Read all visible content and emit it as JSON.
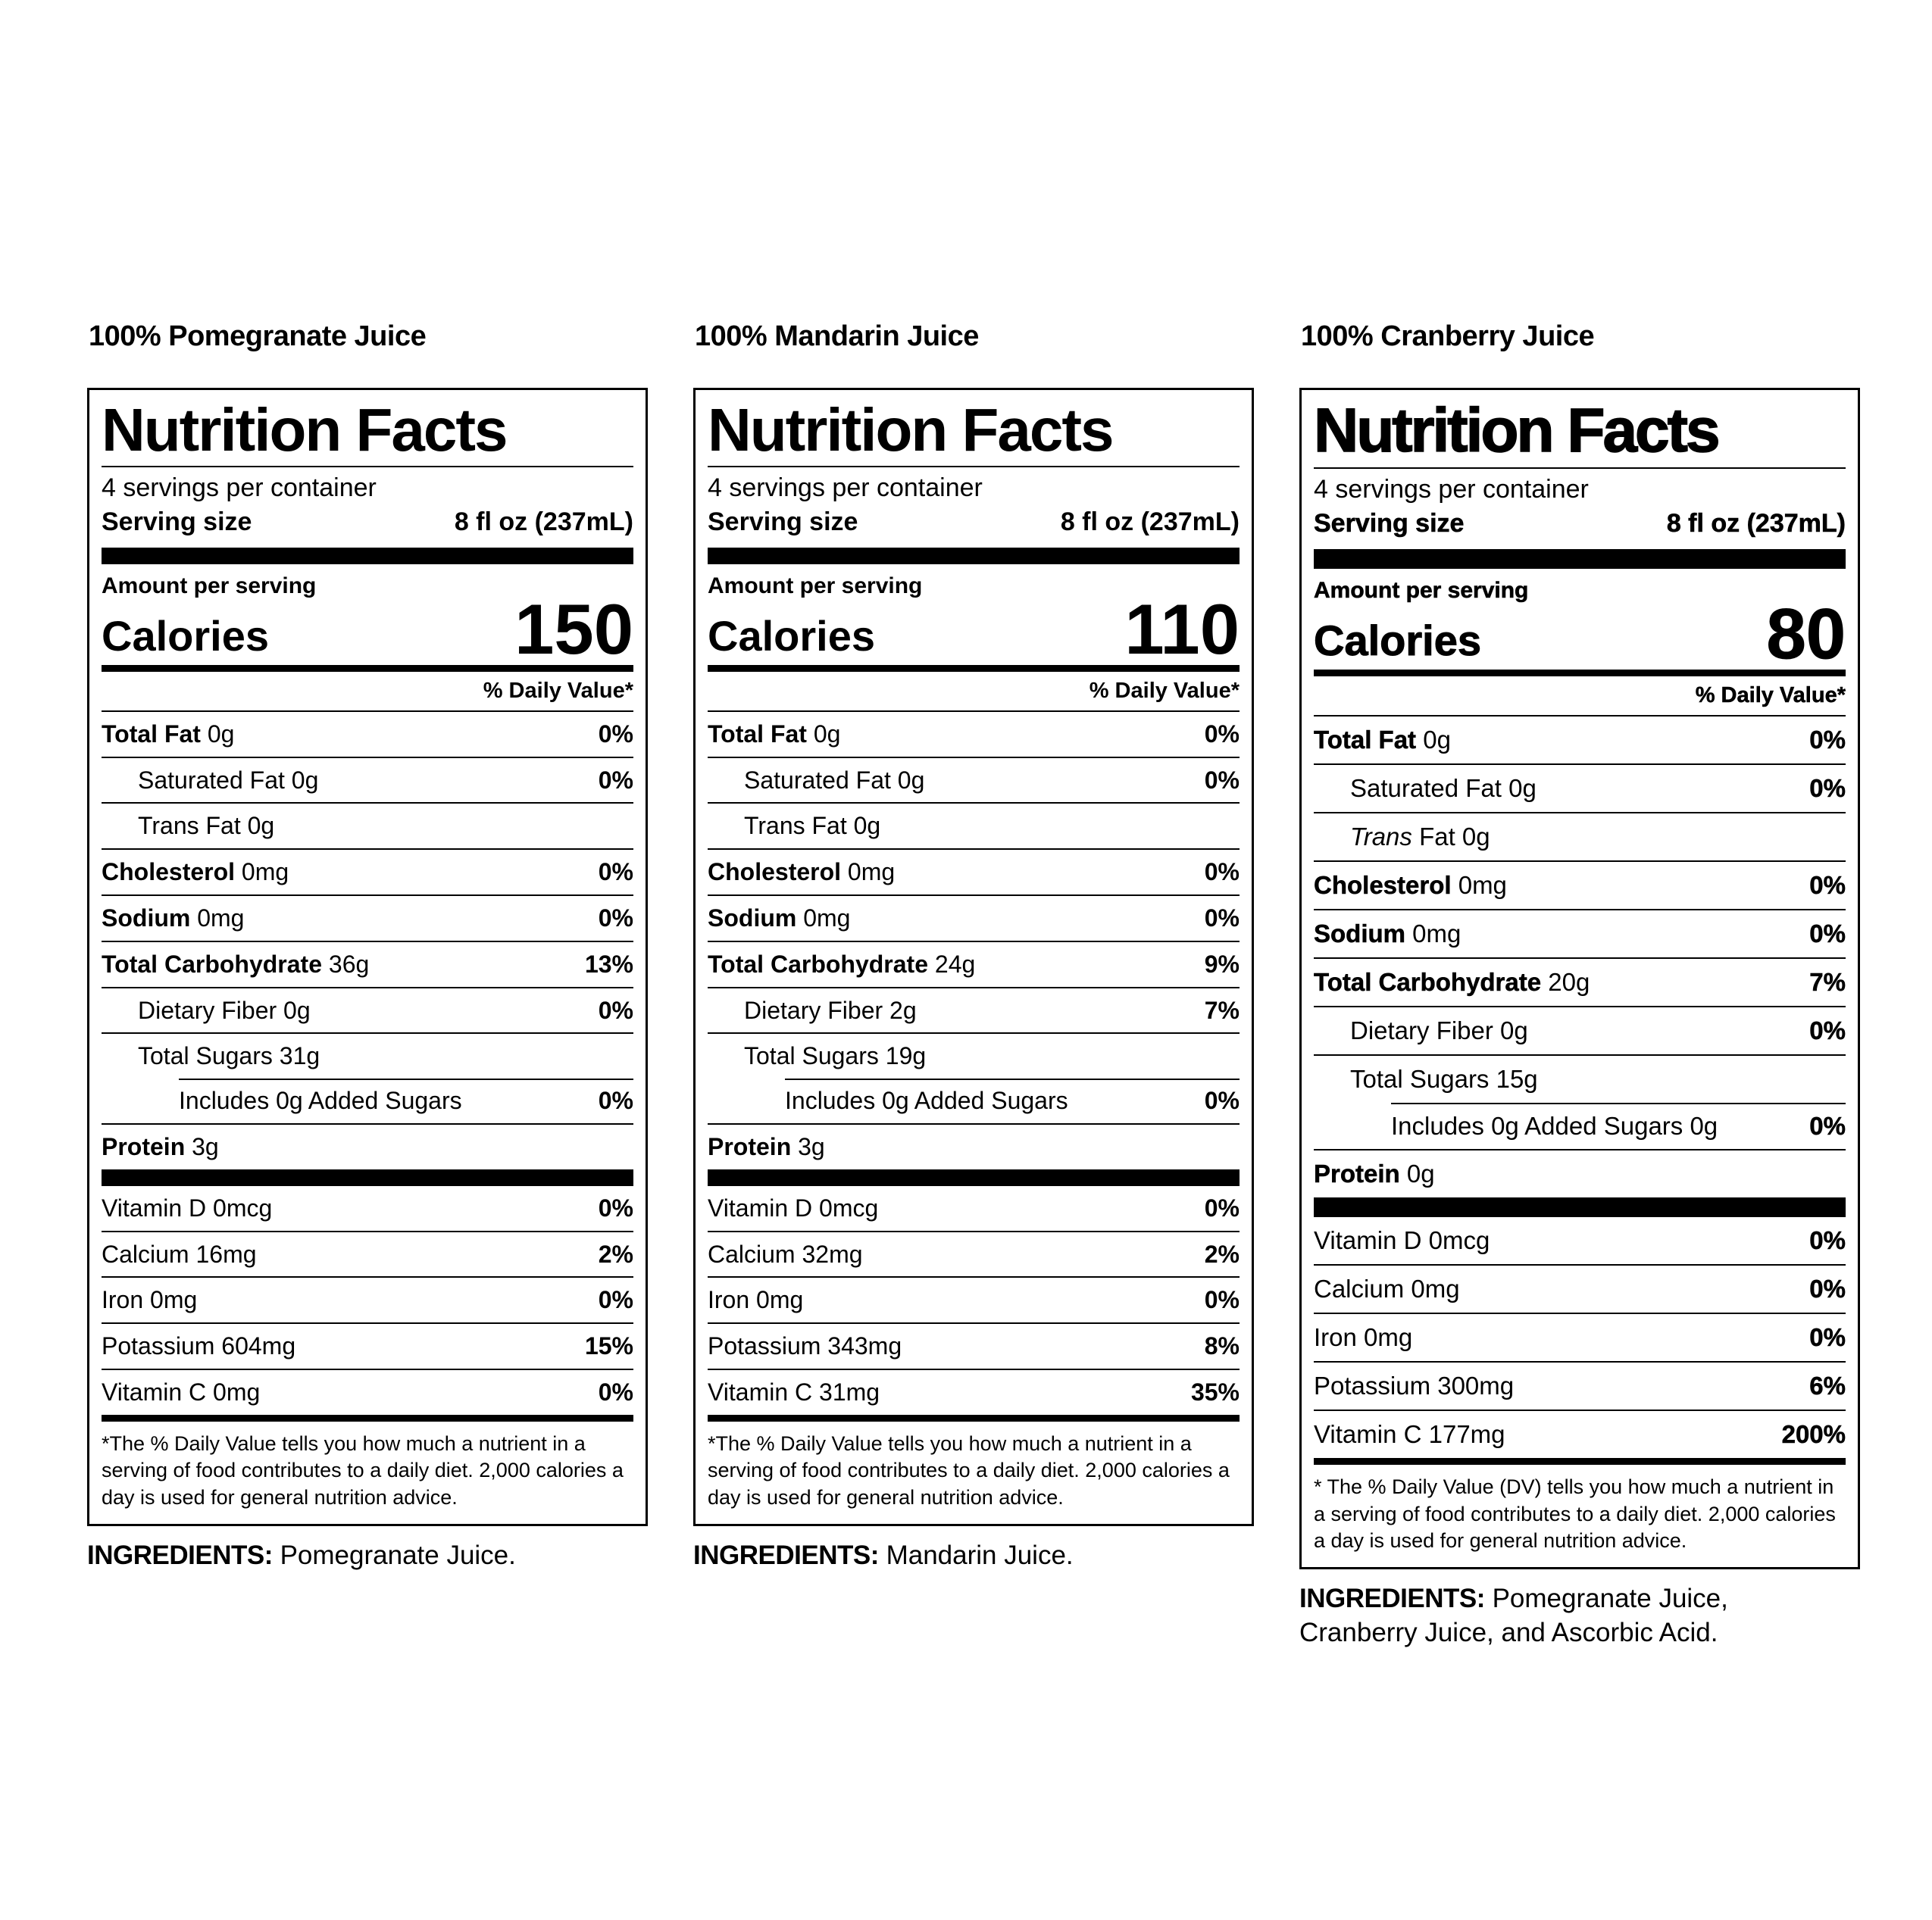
{
  "labels": [
    {
      "title": "100% Pomegranate Juice",
      "nf_title": "Nutrition Facts",
      "servings_per_container": "4 servings per container",
      "serving_size_label": "Serving size",
      "serving_size_value": "8 fl oz (237mL)",
      "amount_per_serving": "Amount per serving",
      "calories_label": "Calories",
      "calories_value": "150",
      "dv_header": "% Daily Value*",
      "nutrient_rows": [
        {
          "b": "Total Fat",
          "t": " 0g",
          "dv": "0%",
          "indent": 0
        },
        {
          "t": "Saturated Fat 0g",
          "dv": "0%",
          "indent": 1
        },
        {
          "t": "Trans Fat 0g",
          "dv": "",
          "indent": 1
        },
        {
          "b": "Cholesterol",
          "t": " 0mg",
          "dv": "0%",
          "indent": 0
        },
        {
          "b": "Sodium",
          "t": " 0mg",
          "dv": "0%",
          "indent": 0
        },
        {
          "b": "Total Carbohydrate",
          "t": " 36g",
          "dv": "13%",
          "indent": 0
        },
        {
          "t": "Dietary Fiber 0g",
          "dv": "0%",
          "indent": 1
        },
        {
          "t": "Total Sugars 31g",
          "dv": "",
          "indent": 1
        },
        {
          "t": "Includes 0g Added Sugars",
          "dv": "0%",
          "indent": 2,
          "rule": "indented"
        },
        {
          "b": "Protein",
          "t": " 3g",
          "dv": "",
          "indent": 0
        }
      ],
      "vitamin_rows": [
        {
          "t": "Vitamin D 0mcg",
          "dv": "0%",
          "indent": 0
        },
        {
          "t": "Calcium 16mg",
          "dv": "2%",
          "indent": 0
        },
        {
          "t": "Iron 0mg",
          "dv": "0%",
          "indent": 0
        },
        {
          "t": "Potassium 604mg",
          "dv": "15%",
          "indent": 0
        },
        {
          "t": "Vitamin C 0mg",
          "dv": "0%",
          "indent": 0
        }
      ],
      "footnote": "*The % Daily Value tells you how much a nutrient in a serving of food contributes to a daily diet. 2,000 calories a day is used for general nutrition advice.",
      "ingredients_label": "INGREDIENTS:",
      "ingredients_text": " Pomegranate Juice."
    },
    {
      "title": "100% Mandarin Juice",
      "nf_title": "Nutrition Facts",
      "servings_per_container": "4 servings per container",
      "serving_size_label": "Serving size",
      "serving_size_value": "8 fl oz (237mL)",
      "amount_per_serving": "Amount per serving",
      "calories_label": "Calories",
      "calories_value": "110",
      "dv_header": "% Daily Value*",
      "nutrient_rows": [
        {
          "b": "Total Fat",
          "t": " 0g",
          "dv": "0%",
          "indent": 0
        },
        {
          "t": "Saturated Fat 0g",
          "dv": "0%",
          "indent": 1
        },
        {
          "t": "Trans Fat 0g",
          "dv": "",
          "indent": 1
        },
        {
          "b": "Cholesterol",
          "t": " 0mg",
          "dv": "0%",
          "indent": 0
        },
        {
          "b": "Sodium",
          "t": " 0mg",
          "dv": "0%",
          "indent": 0
        },
        {
          "b": "Total Carbohydrate",
          "t": " 24g",
          "dv": "9%",
          "indent": 0
        },
        {
          "t": "Dietary Fiber 2g",
          "dv": "7%",
          "indent": 1
        },
        {
          "t": "Total Sugars 19g",
          "dv": "",
          "indent": 1
        },
        {
          "t": "Includes 0g Added Sugars",
          "dv": "0%",
          "indent": 2,
          "rule": "indented"
        },
        {
          "b": "Protein",
          "t": " 3g",
          "dv": "",
          "indent": 0
        }
      ],
      "vitamin_rows": [
        {
          "t": "Vitamin D 0mcg",
          "dv": "0%",
          "indent": 0
        },
        {
          "t": "Calcium 32mg",
          "dv": "2%",
          "indent": 0
        },
        {
          "t": "Iron 0mg",
          "dv": "0%",
          "indent": 0
        },
        {
          "t": "Potassium 343mg",
          "dv": "8%",
          "indent": 0
        },
        {
          "t": "Vitamin C 31mg",
          "dv": "35%",
          "indent": 0
        }
      ],
      "footnote": "*The % Daily Value tells you how much a nutrient in a serving of food contributes to a daily diet. 2,000 calories a day is used for general nutrition advice.",
      "ingredients_label": "INGREDIENTS:",
      "ingredients_text": " Mandarin Juice."
    },
    {
      "title": "100% Cranberry Juice",
      "nf_title": "Nutrition Facts",
      "servings_per_container": "4 servings per container",
      "serving_size_label": "Serving size",
      "serving_size_value": "8 fl oz (237mL)",
      "amount_per_serving": "Amount per serving",
      "calories_label": "Calories",
      "calories_value": "80",
      "dv_header": "% Daily Value*",
      "nutrient_rows": [
        {
          "b": "Total Fat",
          "t": " 0g",
          "dv": "0%",
          "indent": 0
        },
        {
          "t": "Saturated Fat 0g",
          "dv": "0%",
          "indent": 1
        },
        {
          "i": "Trans",
          "t": " Fat 0g",
          "dv": "",
          "indent": 1
        },
        {
          "b": "Cholesterol",
          "t": " 0mg",
          "dv": "0%",
          "indent": 0
        },
        {
          "b": "Sodium",
          "t": " 0mg",
          "dv": "0%",
          "indent": 0
        },
        {
          "b": "Total Carbohydrate",
          "t": " 20g",
          "dv": "7%",
          "indent": 0
        },
        {
          "t": "Dietary Fiber 0g",
          "dv": "0%",
          "indent": 1
        },
        {
          "t": "Total Sugars 15g",
          "dv": "",
          "indent": 1
        },
        {
          "t": "Includes 0g Added Sugars 0g",
          "dv": "0%",
          "indent": 2,
          "rule": "indented"
        },
        {
          "b": "Protein",
          "t": " 0g",
          "dv": "",
          "indent": 0
        }
      ],
      "vitamin_rows": [
        {
          "t": "Vitamin D 0mcg",
          "dv": "0%",
          "indent": 0
        },
        {
          "t": "Calcium 0mg",
          "dv": "0%",
          "indent": 0
        },
        {
          "t": "Iron 0mg",
          "dv": "0%",
          "indent": 0
        },
        {
          "t": "Potassium 300mg",
          "dv": "6%",
          "indent": 0
        },
        {
          "t": "Vitamin C 177mg",
          "dv": "200%",
          "indent": 0
        }
      ],
      "footnote": "* The % Daily Value (DV) tells you how much a nutrient in a serving of food contributes to a daily diet. 2,000 calories a day is used for general nutrition advice.",
      "ingredients_label": "INGREDIENTS:",
      "ingredients_text": " Pomegranate Juice,\nCranberry Juice, and Ascorbic Acid."
    }
  ]
}
